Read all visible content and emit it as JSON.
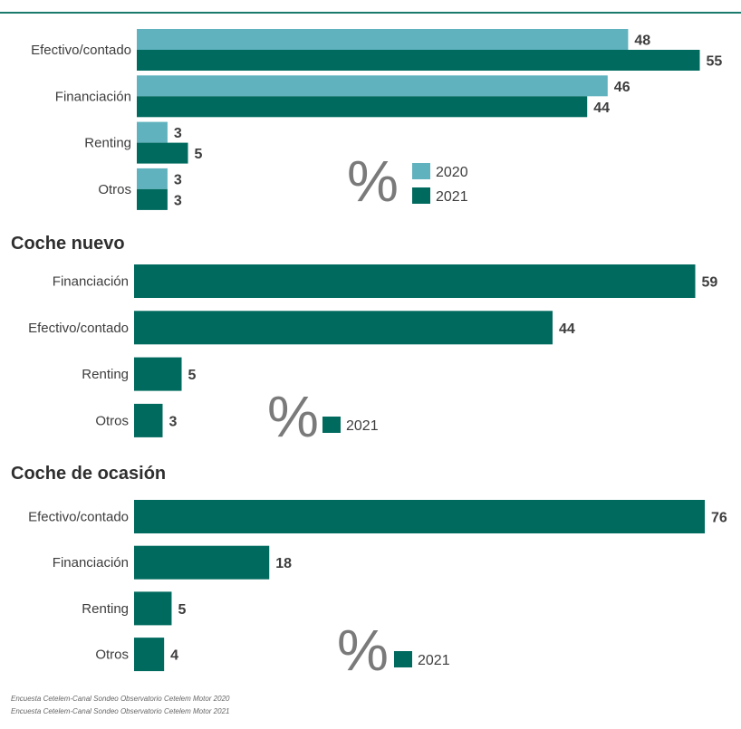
{
  "colors": {
    "c2020": "#5fb2be",
    "c2021": "#006a5e",
    "rule": "#1a7a6b"
  },
  "percent_symbol": "%",
  "chart_data": [
    {
      "type": "bar",
      "orientation": "horizontal",
      "title": "",
      "categories": [
        "Efectivo/contado",
        "Financiación",
        "Renting",
        "Otros"
      ],
      "series": [
        {
          "name": "2020",
          "values": [
            48,
            46,
            3,
            3
          ]
        },
        {
          "name": "2021",
          "values": [
            55,
            44,
            5,
            3
          ]
        }
      ],
      "legend": [
        "2020",
        "2021"
      ],
      "unit": "%"
    },
    {
      "type": "bar",
      "orientation": "horizontal",
      "title": "Coche nuevo",
      "categories": [
        "Financiación",
        "Efectivo/contado",
        "Renting",
        "Otros"
      ],
      "series": [
        {
          "name": "2021",
          "values": [
            59,
            44,
            5,
            3
          ]
        }
      ],
      "legend": [
        "2021"
      ],
      "unit": "%"
    },
    {
      "type": "bar",
      "orientation": "horizontal",
      "title": "Coche de ocasión",
      "categories": [
        "Efectivo/contado",
        "Financiación",
        "Renting",
        "Otros"
      ],
      "series": [
        {
          "name": "2021",
          "values": [
            76,
            18,
            5,
            4
          ]
        }
      ],
      "legend": [
        "2021"
      ],
      "unit": "%"
    }
  ],
  "footnotes": [
    "Encuesta Cetelem-Canal Sondeo Observatorio Cetelem Motor 2020",
    "Encuesta Cetelem-Canal Sondeo Observatorio Cetelem Motor 2021"
  ]
}
